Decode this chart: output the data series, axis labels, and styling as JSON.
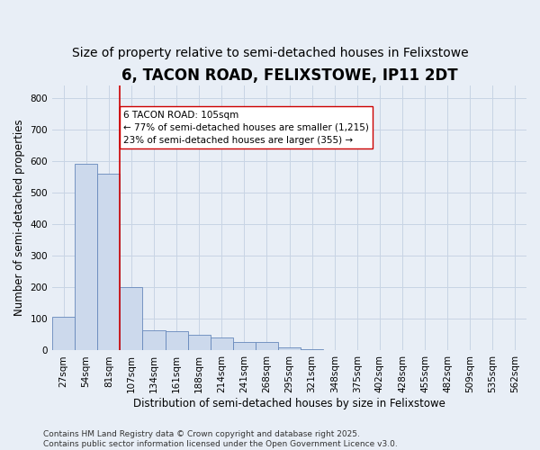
{
  "title": "6, TACON ROAD, FELIXSTOWE, IP11 2DT",
  "subtitle": "Size of property relative to semi-detached houses in Felixstowe",
  "xlabel": "Distribution of semi-detached houses by size in Felixstowe",
  "ylabel": "Number of semi-detached properties",
  "categories": [
    "27sqm",
    "54sqm",
    "81sqm",
    "107sqm",
    "134sqm",
    "161sqm",
    "188sqm",
    "214sqm",
    "241sqm",
    "268sqm",
    "295sqm",
    "321sqm",
    "348sqm",
    "375sqm",
    "402sqm",
    "428sqm",
    "455sqm",
    "482sqm",
    "509sqm",
    "535sqm",
    "562sqm"
  ],
  "values": [
    108,
    590,
    560,
    200,
    65,
    62,
    50,
    42,
    28,
    28,
    10,
    5,
    2,
    0,
    0,
    0,
    0,
    0,
    0,
    0,
    0
  ],
  "bar_color": "#ccd9ec",
  "bar_edge_color": "#6688bb",
  "grid_color": "#c8d4e4",
  "background_color": "#e8eef6",
  "vline_color": "#cc0000",
  "annotation_text": "6 TACON ROAD: 105sqm\n← 77% of semi-detached houses are smaller (1,215)\n23% of semi-detached houses are larger (355) →",
  "annotation_box_color": "#ffffff",
  "annotation_box_edge_color": "#cc0000",
  "footer": "Contains HM Land Registry data © Crown copyright and database right 2025.\nContains public sector information licensed under the Open Government Licence v3.0.",
  "ylim": [
    0,
    840
  ],
  "yticks": [
    0,
    100,
    200,
    300,
    400,
    500,
    600,
    700,
    800
  ],
  "title_fontsize": 12,
  "subtitle_fontsize": 10,
  "axis_label_fontsize": 8.5,
  "tick_fontsize": 7.5,
  "annotation_fontsize": 7.5,
  "footer_fontsize": 6.5
}
